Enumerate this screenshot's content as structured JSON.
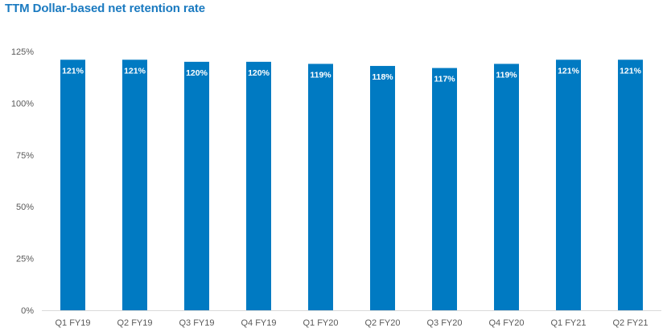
{
  "chart_data": {
    "type": "bar",
    "title": "TTM Dollar-based net retention rate",
    "xlabel": "",
    "ylabel": "",
    "categories": [
      "Q1 FY19",
      "Q2 FY19",
      "Q3 FY19",
      "Q4 FY19",
      "Q1 FY20",
      "Q2 FY20",
      "Q3 FY20",
      "Q4 FY20",
      "Q1 FY21",
      "Q2 FY21"
    ],
    "values": [
      121,
      121,
      120,
      120,
      119,
      118,
      117,
      119,
      121,
      121
    ],
    "data_labels": [
      "121%",
      "121%",
      "120%",
      "120%",
      "119%",
      "118%",
      "117%",
      "119%",
      "121%",
      "121%"
    ],
    "ylim": [
      0,
      125
    ],
    "yticks": [
      0,
      25,
      50,
      75,
      100,
      125
    ],
    "ytick_labels": [
      "0%",
      "25%",
      "50%",
      "75%",
      "100%",
      "125%"
    ],
    "grid": false,
    "legend": "none",
    "bar_color": "#007ac2",
    "title_color": "#1a7ac0"
  }
}
